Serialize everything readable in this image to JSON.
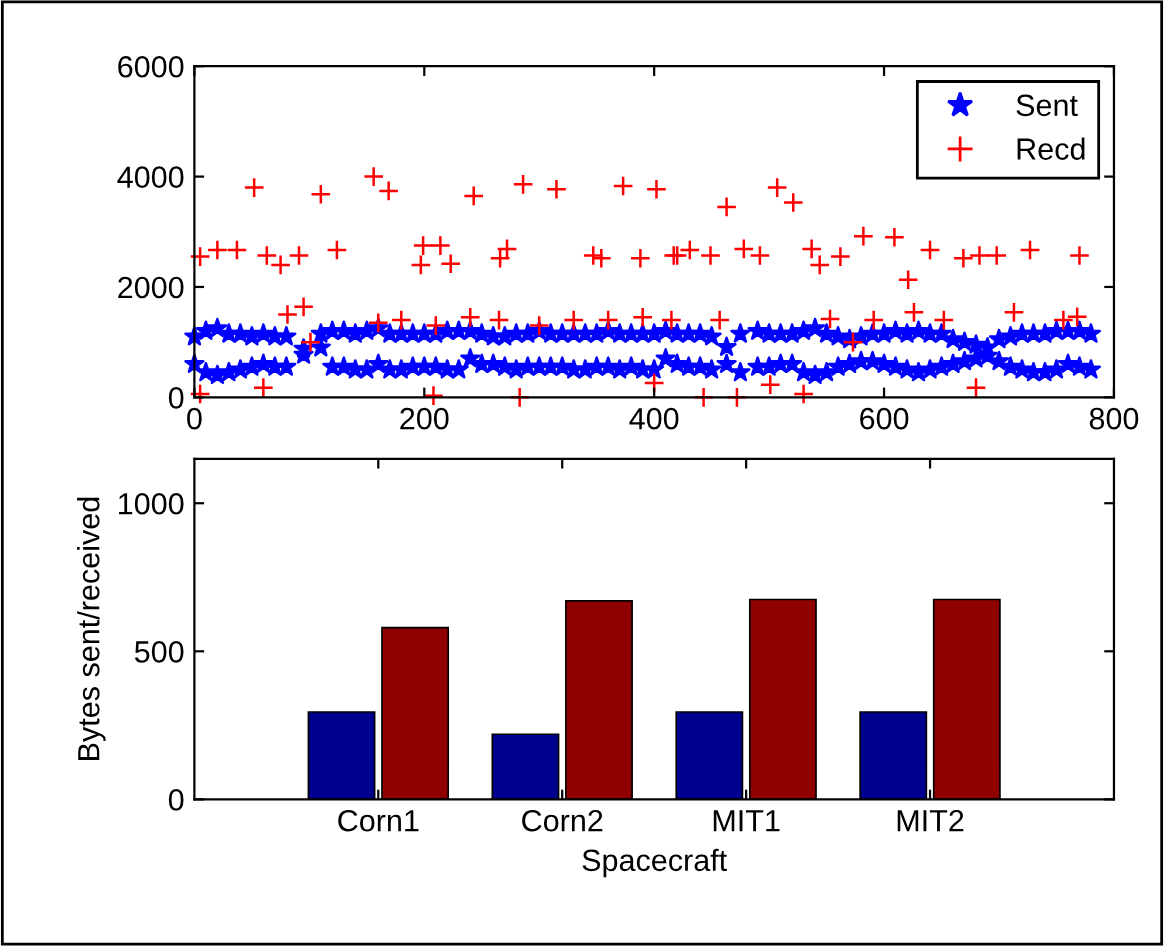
{
  "chart_data": [
    {
      "type": "scatter",
      "xlim": [
        0,
        800
      ],
      "ylim": [
        0,
        6000
      ],
      "xticks": [
        0,
        200,
        400,
        600,
        800
      ],
      "yticks": [
        0,
        2000,
        4000,
        6000
      ],
      "grid": false,
      "legend": "top right",
      "series": [
        {
          "name": "Sent",
          "color": "#0000ff",
          "marker": "star",
          "x": [
            0,
            10,
            20,
            30,
            40,
            50,
            60,
            70,
            80,
            95,
            110,
            120,
            130,
            140,
            150,
            160,
            170,
            180,
            190,
            200,
            210,
            220,
            230,
            240,
            250,
            260,
            270,
            280,
            290,
            300,
            310,
            320,
            330,
            340,
            350,
            360,
            370,
            380,
            390,
            400,
            410,
            420,
            430,
            440,
            450,
            463,
            475,
            490,
            500,
            510,
            520,
            530,
            540,
            550,
            560,
            570,
            580,
            590,
            600,
            610,
            620,
            630,
            640,
            650,
            660,
            670,
            680,
            690,
            700,
            710,
            720,
            730,
            740,
            750,
            760,
            770,
            780,
            0,
            10,
            20,
            30,
            40,
            50,
            60,
            70,
            80,
            95,
            110,
            120,
            130,
            140,
            150,
            160,
            170,
            180,
            190,
            200,
            210,
            220,
            230,
            240,
            250,
            260,
            270,
            280,
            290,
            300,
            310,
            320,
            330,
            340,
            350,
            360,
            370,
            380,
            390,
            400,
            410,
            420,
            430,
            440,
            450,
            463,
            475,
            490,
            500,
            510,
            520,
            530,
            540,
            550,
            560,
            570,
            580,
            590,
            600,
            610,
            620,
            630,
            640,
            650,
            660,
            670,
            680,
            690,
            700,
            710,
            720,
            730,
            740,
            750,
            760,
            770,
            780
          ],
          "values": [
            1100,
            1200,
            1250,
            1150,
            1150,
            1100,
            1150,
            1100,
            1100,
            880,
            1150,
            1200,
            1200,
            1150,
            1200,
            1250,
            1150,
            1150,
            1150,
            1150,
            1150,
            1200,
            1200,
            1200,
            1150,
            1100,
            1100,
            1150,
            1150,
            1200,
            1150,
            1150,
            1150,
            1150,
            1150,
            1200,
            1150,
            1150,
            1150,
            1150,
            1200,
            1150,
            1150,
            1150,
            1100,
            910,
            1150,
            1200,
            1150,
            1150,
            1150,
            1200,
            1250,
            1150,
            1100,
            1050,
            1100,
            1150,
            1150,
            1200,
            1150,
            1200,
            1150,
            1150,
            1050,
            1000,
            950,
            900,
            1050,
            1100,
            1150,
            1150,
            1150,
            1200,
            1200,
            1200,
            1150,
            600,
            450,
            400,
            450,
            500,
            550,
            600,
            550,
            550,
            770,
            900,
            550,
            550,
            500,
            500,
            600,
            500,
            500,
            550,
            550,
            550,
            500,
            500,
            700,
            600,
            600,
            550,
            500,
            550,
            550,
            550,
            550,
            500,
            500,
            550,
            550,
            500,
            550,
            500,
            500,
            700,
            600,
            550,
            550,
            500,
            600,
            450,
            550,
            550,
            600,
            600,
            450,
            400,
            450,
            550,
            600,
            650,
            650,
            600,
            550,
            500,
            450,
            500,
            550,
            600,
            650,
            700,
            750,
            650,
            550,
            500,
            450,
            450,
            500,
            600,
            550,
            500
          ]
        },
        {
          "name": "Recd",
          "color": "#ff0000",
          "marker": "cross",
          "x": [
            5,
            20,
            37,
            52,
            63,
            75,
            91,
            81,
            95,
            101,
            110,
            124,
            156,
            169,
            197,
            199,
            214,
            223,
            243,
            266,
            272,
            286,
            315,
            347,
            354,
            373,
            388,
            402,
            420,
            5,
            60,
            208,
            283,
            400,
            160,
            180,
            210,
            240,
            265,
            300,
            330,
            360,
            390,
            415,
            417,
            431,
            449,
            463,
            478,
            492,
            507,
            521,
            537,
            544,
            562,
            582,
            609,
            621,
            640,
            669,
            683,
            698,
            727,
            770,
            443,
            472,
            501,
            530,
            680,
            457,
            553,
            573,
            591,
            626,
            652,
            713,
            756,
            768
          ],
          "values": [
            2550,
            2670,
            2670,
            3800,
            2570,
            2400,
            2570,
            1500,
            1640,
            1000,
            3680,
            2670,
            4000,
            3740,
            2400,
            2750,
            2750,
            2420,
            3650,
            2520,
            2690,
            3860,
            3770,
            2570,
            2520,
            3830,
            2520,
            3770,
            2570,
            60,
            175,
            30,
            0,
            260,
            1350,
            1400,
            1300,
            1450,
            1400,
            1300,
            1400,
            1400,
            1450,
            1400,
            2570,
            2670,
            2570,
            3450,
            2690,
            2570,
            3800,
            3530,
            2690,
            2400,
            2550,
            2920,
            2900,
            2130,
            2670,
            2520,
            2570,
            2570,
            2670,
            2570,
            0,
            0,
            230,
            60,
            175,
            1400,
            1420,
            1000,
            1400,
            1540,
            1400,
            1540,
            1400,
            1460
          ]
        }
      ]
    },
    {
      "type": "bar",
      "categories": [
        "Corn1",
        "Corn2",
        "MIT1",
        "MIT2"
      ],
      "ylabel": "Bytes sent/received",
      "xlabel": "Spacecraft",
      "ylim": [
        0,
        1150
      ],
      "yticks": [
        0,
        500,
        1000
      ],
      "grid": false,
      "legend": false,
      "series": [
        {
          "color": "#00008f",
          "values": [
            295,
            220,
            295,
            295
          ]
        },
        {
          "color": "#8f0000",
          "values": [
            580,
            670,
            675,
            675
          ]
        }
      ]
    }
  ]
}
